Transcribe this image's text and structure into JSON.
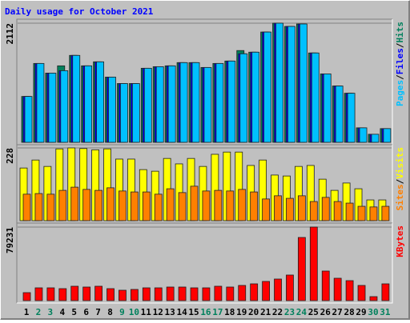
{
  "chart_data": [
    {
      "type": "bar",
      "title": "Daily usage for October 2021",
      "legend_separator": "/",
      "ylim": [
        0,
        2112
      ],
      "yticks": [
        2112
      ],
      "series": [
        {
          "name": "Hits",
          "color": "#00805c",
          "values": [
            813,
            1398,
            1227,
            1356,
            1541,
            1356,
            1427,
            1156,
            1042,
            1042,
            1313,
            1341,
            1356,
            1413,
            1413,
            1327,
            1398,
            1441,
            1627,
            1598,
            1955,
            2112,
            2055,
            2098,
            1584,
            1213,
            999,
            870,
            257,
            143,
            243
          ]
        },
        {
          "name": "Files",
          "color": "#0000ff",
          "values": [
            813,
            1398,
            1227,
            1270,
            1541,
            1356,
            1427,
            1156,
            1042,
            1042,
            1313,
            1341,
            1356,
            1413,
            1413,
            1327,
            1398,
            1441,
            1570,
            1598,
            1955,
            2112,
            2055,
            2098,
            1584,
            1213,
            999,
            870,
            257,
            143,
            243
          ]
        },
        {
          "name": "Pages",
          "color": "#00c0ff",
          "values": [
            813,
            1398,
            1227,
            1270,
            1541,
            1356,
            1427,
            1156,
            1042,
            1042,
            1313,
            1341,
            1356,
            1413,
            1413,
            1327,
            1398,
            1441,
            1570,
            1598,
            1955,
            2112,
            2055,
            2098,
            1584,
            1213,
            999,
            870,
            257,
            143,
            243
          ]
        }
      ]
    },
    {
      "type": "bar",
      "legend_separator": "/",
      "ylim": [
        0,
        228
      ],
      "yticks": [
        228
      ],
      "series": [
        {
          "name": "Visits",
          "color": "#ffff00",
          "values": [
            165,
            190,
            170,
            225,
            228,
            226,
            222,
            225,
            193,
            193,
            160,
            155,
            195,
            178,
            195,
            170,
            208,
            215,
            215,
            173,
            190,
            143,
            140,
            170,
            173,
            130,
            95,
            118,
            100,
            65,
            65
          ]
        },
        {
          "name": "Sites",
          "color": "#ff8000",
          "values": [
            83,
            85,
            83,
            95,
            105,
            98,
            95,
            103,
            93,
            90,
            90,
            83,
            100,
            88,
            108,
            93,
            95,
            93,
            98,
            90,
            68,
            78,
            70,
            78,
            60,
            73,
            60,
            55,
            45,
            43,
            45
          ]
        }
      ]
    },
    {
      "type": "bar",
      "ylim": [
        0,
        79231
      ],
      "yticks": [
        79231
      ],
      "categories": [
        "1",
        "2",
        "3",
        "4",
        "5",
        "6",
        "7",
        "8",
        "9",
        "10",
        "11",
        "12",
        "13",
        "14",
        "15",
        "16",
        "17",
        "18",
        "19",
        "20",
        "21",
        "22",
        "23",
        "24",
        "25",
        "26",
        "27",
        "28",
        "29",
        "30",
        "31"
      ],
      "weekend_color": "#00805c",
      "weekday_color": "#000000",
      "weekends": [
        "2",
        "3",
        "9",
        "10",
        "16",
        "17",
        "23",
        "24",
        "30",
        "31"
      ],
      "series": [
        {
          "name": "KBytes",
          "color": "#ff0000",
          "values": [
            8612,
            13779,
            13779,
            12918,
            15500,
            14640,
            15500,
            12918,
            11196,
            12057,
            13779,
            13779,
            14640,
            14640,
            13779,
            13779,
            15500,
            14640,
            16362,
            18085,
            20669,
            23252,
            27559,
            68035,
            79231,
            31865,
            24114,
            21530,
            16362,
            4306,
            18085
          ]
        }
      ]
    }
  ]
}
